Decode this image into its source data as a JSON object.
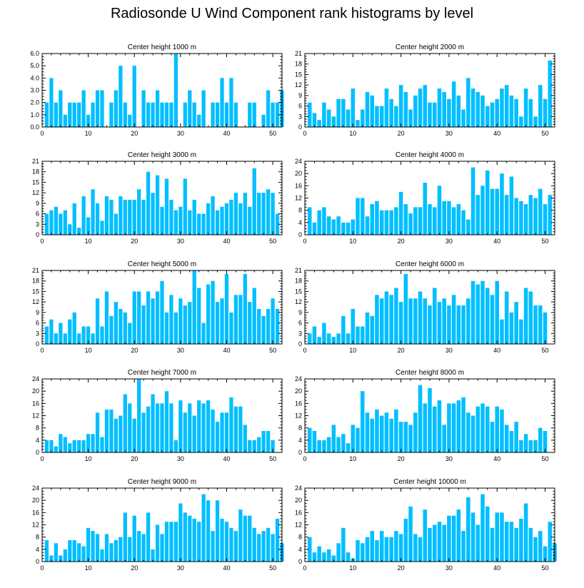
{
  "title": "Radiosonde U Wind Component rank histograms by level",
  "colors": {
    "bar": "#00bfff",
    "axis": "#000000",
    "background": "#ffffff"
  },
  "chart_data": [
    {
      "type": "bar",
      "title": "Center height 1000 m",
      "ylim": [
        0,
        6
      ],
      "yticks": [
        "0.0",
        "1.0",
        "2.0",
        "3.0",
        "4.0",
        "5.0",
        "6.0"
      ],
      "xticks": [
        0,
        10,
        20,
        30,
        40,
        50
      ],
      "values": [
        2,
        4,
        2,
        3,
        1,
        2,
        2,
        2,
        3,
        1,
        2,
        3,
        3,
        0,
        2,
        3,
        5,
        2,
        1,
        5,
        0,
        3,
        2,
        2,
        3,
        2,
        2,
        2,
        6,
        0,
        2,
        3,
        2,
        1,
        3,
        0,
        2,
        2,
        4,
        2,
        4,
        2,
        0,
        0,
        2,
        2,
        0,
        1,
        3,
        2,
        2,
        3
      ]
    },
    {
      "type": "bar",
      "title": "Center height 2000 m",
      "ylim": [
        0,
        21
      ],
      "yticks": [
        "0",
        "3",
        "6",
        "9",
        "12",
        "15",
        "18",
        "21"
      ],
      "xticks": [
        0,
        10,
        20,
        30,
        40,
        50
      ],
      "values": [
        7,
        4,
        2,
        7,
        5,
        3,
        8,
        8,
        5,
        11,
        2,
        5,
        10,
        9,
        6,
        6,
        11,
        8,
        6,
        12,
        10,
        5,
        9,
        11,
        12,
        7,
        7,
        11,
        10,
        8,
        13,
        9,
        5,
        14,
        11,
        10,
        9,
        6,
        7,
        8,
        11,
        12,
        9,
        8,
        3,
        11,
        8,
        3,
        12,
        8,
        19
      ]
    },
    {
      "type": "bar",
      "title": "Center height 3000 m",
      "ylim": [
        0,
        21
      ],
      "yticks": [
        "0",
        "3",
        "6",
        "9",
        "12",
        "15",
        "18",
        "21"
      ],
      "xticks": [
        0,
        10,
        20,
        30,
        40,
        50
      ],
      "values": [
        6,
        7,
        8,
        6,
        7,
        3,
        9,
        2,
        11,
        5,
        13,
        9,
        4,
        11,
        10,
        6,
        11,
        10,
        10,
        10,
        13,
        10,
        18,
        12,
        17,
        8,
        16,
        10,
        7,
        8,
        16,
        7,
        10,
        6,
        6,
        9,
        11,
        7,
        8,
        9,
        10,
        12,
        9,
        12,
        8,
        19,
        12,
        12,
        13,
        12,
        6
      ]
    },
    {
      "type": "bar",
      "title": "Center height 4000 m",
      "ylim": [
        0,
        24
      ],
      "yticks": [
        "0",
        "4",
        "8",
        "12",
        "16",
        "20",
        "24"
      ],
      "xticks": [
        0,
        10,
        20,
        30,
        40,
        50
      ],
      "values": [
        9,
        4,
        8,
        9,
        6,
        5,
        6,
        4,
        4,
        5,
        12,
        12,
        6,
        10,
        11,
        8,
        8,
        8,
        9,
        14,
        10,
        7,
        9,
        9,
        17,
        10,
        9,
        16,
        11,
        11,
        9,
        10,
        8,
        5,
        22,
        13,
        16,
        21,
        15,
        15,
        20,
        13,
        19,
        12,
        11,
        10,
        13,
        12,
        15,
        10,
        13
      ]
    },
    {
      "type": "bar",
      "title": "Center height 5000 m",
      "ylim": [
        0,
        21
      ],
      "yticks": [
        "0",
        "3",
        "6",
        "9",
        "12",
        "15",
        "18",
        "21"
      ],
      "xticks": [
        0,
        10,
        20,
        30,
        40,
        50
      ],
      "values": [
        5,
        7,
        3,
        6,
        3,
        7,
        9,
        3,
        5,
        5,
        3,
        13,
        5,
        15,
        8,
        12,
        10,
        9,
        6,
        15,
        15,
        11,
        15,
        13,
        15,
        18,
        9,
        14,
        9,
        13,
        11,
        12,
        21,
        16,
        6,
        17,
        18,
        12,
        13,
        20,
        9,
        14,
        14,
        20,
        12,
        16,
        10,
        8,
        10,
        13,
        10
      ]
    },
    {
      "type": "bar",
      "title": "Center height 6000 m",
      "ylim": [
        0,
        21
      ],
      "yticks": [
        "0",
        "3",
        "6",
        "9",
        "12",
        "15",
        "18",
        "21"
      ],
      "xticks": [
        0,
        10,
        20,
        30,
        40,
        50
      ],
      "values": [
        3,
        5,
        2,
        6,
        3,
        2,
        3,
        8,
        3,
        10,
        5,
        5,
        9,
        8,
        14,
        13,
        15,
        14,
        16,
        12,
        20,
        13,
        13,
        15,
        13,
        11,
        16,
        12,
        13,
        11,
        14,
        11,
        11,
        13,
        18,
        17,
        18,
        16,
        14,
        18,
        7,
        15,
        9,
        12,
        7,
        16,
        15,
        11,
        11,
        9
      ]
    },
    {
      "type": "bar",
      "title": "Center height 7000 m",
      "ylim": [
        0,
        24
      ],
      "yticks": [
        "0",
        "4",
        "8",
        "12",
        "16",
        "20",
        "24"
      ],
      "xticks": [
        0,
        10,
        20,
        30,
        40,
        50
      ],
      "values": [
        4,
        4,
        2,
        6,
        5,
        3,
        4,
        4,
        4,
        6,
        6,
        13,
        5,
        14,
        14,
        11,
        12,
        19,
        16,
        11,
        24,
        13,
        15,
        19,
        16,
        16,
        20,
        16,
        4,
        17,
        13,
        16,
        12,
        17,
        16,
        17,
        14,
        10,
        13,
        13,
        18,
        15,
        15,
        9,
        4,
        4,
        5,
        7,
        7,
        4
      ]
    },
    {
      "type": "bar",
      "title": "Center height 8000 m",
      "ylim": [
        0,
        24
      ],
      "yticks": [
        "0",
        "4",
        "8",
        "12",
        "16",
        "20",
        "24"
      ],
      "xticks": [
        0,
        10,
        20,
        30,
        40,
        50
      ],
      "values": [
        8,
        7,
        4,
        4,
        5,
        9,
        5,
        6,
        3,
        9,
        8,
        20,
        13,
        11,
        14,
        12,
        13,
        11,
        14,
        10,
        10,
        9,
        13,
        22,
        16,
        21,
        15,
        17,
        9,
        16,
        16,
        17,
        18,
        13,
        12,
        15,
        16,
        15,
        10,
        15,
        14,
        9,
        7,
        10,
        4,
        6,
        4,
        4,
        8,
        7
      ]
    },
    {
      "type": "bar",
      "title": "Center height 9000 m",
      "ylim": [
        0,
        24
      ],
      "yticks": [
        "0",
        "4",
        "8",
        "12",
        "16",
        "20",
        "24"
      ],
      "xticks": [
        0,
        10,
        20,
        30,
        40,
        50
      ],
      "values": [
        7,
        2,
        6,
        2,
        4,
        7,
        7,
        6,
        5,
        11,
        10,
        9,
        4,
        9,
        6,
        7,
        8,
        16,
        8,
        15,
        10,
        9,
        16,
        4,
        12,
        9,
        13,
        13,
        13,
        19,
        16,
        15,
        14,
        13,
        22,
        20,
        10,
        20,
        14,
        13,
        11,
        10,
        17,
        15,
        15,
        11,
        9,
        10,
        11,
        9,
        14,
        6
      ]
    },
    {
      "type": "bar",
      "title": "Center height 10000 m",
      "ylim": [
        0,
        24
      ],
      "yticks": [
        "0",
        "4",
        "8",
        "12",
        "16",
        "20",
        "24"
      ],
      "xticks": [
        0,
        10,
        20,
        30,
        40,
        50
      ],
      "values": [
        8,
        3,
        5,
        3,
        4,
        2,
        6,
        11,
        3,
        1,
        7,
        6,
        8,
        10,
        7,
        10,
        8,
        8,
        10,
        9,
        14,
        18,
        9,
        8,
        17,
        11,
        12,
        13,
        12,
        15,
        15,
        17,
        10,
        21,
        16,
        12,
        22,
        18,
        11,
        16,
        16,
        13,
        13,
        11,
        14,
        19,
        11,
        8,
        10,
        5,
        13,
        6
      ]
    }
  ]
}
